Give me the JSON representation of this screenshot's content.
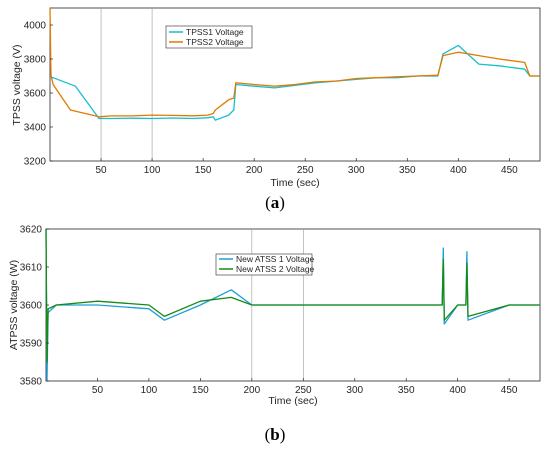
{
  "chart_data": [
    {
      "type": "line",
      "caption": "(a)",
      "xlabel": "Time (sec)",
      "ylabel": "TPSS voltage (V)",
      "xlim": [
        0,
        480
      ],
      "ylim": [
        3200,
        4100
      ],
      "xticks": [
        50,
        100,
        150,
        200,
        250,
        300,
        350,
        400,
        450
      ],
      "yticks": [
        3200,
        3400,
        3600,
        3800,
        4000
      ],
      "legend_position": "upper-left",
      "grid": "partial",
      "series": [
        {
          "name": "TPSS1 Voltage",
          "color": "#17becf",
          "x": [
            0,
            1,
            2,
            3,
            25,
            48,
            60,
            80,
            100,
            120,
            140,
            155,
            160,
            162,
            175,
            180,
            182,
            200,
            220,
            240,
            260,
            280,
            300,
            320,
            340,
            360,
            380,
            385,
            400,
            420,
            440,
            465,
            470,
            480
          ],
          "y": [
            3700,
            3700,
            3690,
            3690,
            3640,
            3450,
            3450,
            3452,
            3450,
            3453,
            3450,
            3455,
            3460,
            3440,
            3470,
            3500,
            3650,
            3640,
            3630,
            3645,
            3660,
            3670,
            3680,
            3690,
            3690,
            3700,
            3700,
            3830,
            3880,
            3770,
            3760,
            3740,
            3700,
            3700
          ]
        },
        {
          "name": "TPSS2 Voltage",
          "color": "#e07b00",
          "x": [
            0,
            1,
            2,
            3,
            20,
            48,
            60,
            80,
            100,
            120,
            140,
            155,
            160,
            162,
            175,
            180,
            182,
            200,
            220,
            240,
            260,
            280,
            300,
            320,
            340,
            360,
            380,
            385,
            400,
            420,
            440,
            465,
            470,
            480
          ],
          "y": [
            4100,
            3700,
            3680,
            3650,
            3500,
            3460,
            3465,
            3465,
            3470,
            3468,
            3466,
            3470,
            3480,
            3500,
            3560,
            3570,
            3660,
            3650,
            3640,
            3650,
            3665,
            3670,
            3685,
            3690,
            3695,
            3700,
            3705,
            3820,
            3840,
            3820,
            3800,
            3780,
            3700,
            3700
          ]
        }
      ]
    },
    {
      "type": "line",
      "caption": "(b)",
      "xlabel": "Time (sec)",
      "ylabel": "ATPSS voltage (W)",
      "xlim": [
        0,
        480
      ],
      "ylim": [
        3580,
        3620
      ],
      "xticks": [
        50,
        100,
        150,
        200,
        250,
        300,
        350,
        400,
        450
      ],
      "yticks": [
        3580,
        3590,
        3600,
        3610,
        3620
      ],
      "legend_position": "upper-center",
      "grid": "partial",
      "series": [
        {
          "name": "New ATSS 1 Voltage",
          "color": "#1f9fd8",
          "x": [
            0,
            1,
            2,
            10,
            50,
            100,
            115,
            150,
            180,
            200,
            250,
            300,
            350,
            385,
            386,
            387,
            400,
            408,
            409,
            410,
            450,
            480
          ],
          "y": [
            3620,
            3580,
            3598,
            3600,
            3600,
            3599,
            3596,
            3600,
            3604,
            3600,
            3600,
            3600,
            3600,
            3600,
            3615,
            3595,
            3600,
            3600,
            3614,
            3596,
            3600,
            3600
          ]
        },
        {
          "name": "New ATSS 2 Voltage",
          "color": "#168a16",
          "x": [
            0,
            1,
            2,
            10,
            50,
            100,
            115,
            150,
            180,
            200,
            250,
            300,
            350,
            385,
            386,
            387,
            400,
            408,
            409,
            410,
            450,
            480
          ],
          "y": [
            3620,
            3585,
            3599,
            3600,
            3601,
            3600,
            3597,
            3601,
            3602,
            3600,
            3600,
            3600,
            3600,
            3600,
            3612,
            3596,
            3600,
            3600,
            3611,
            3597,
            3600,
            3600
          ]
        }
      ]
    }
  ]
}
